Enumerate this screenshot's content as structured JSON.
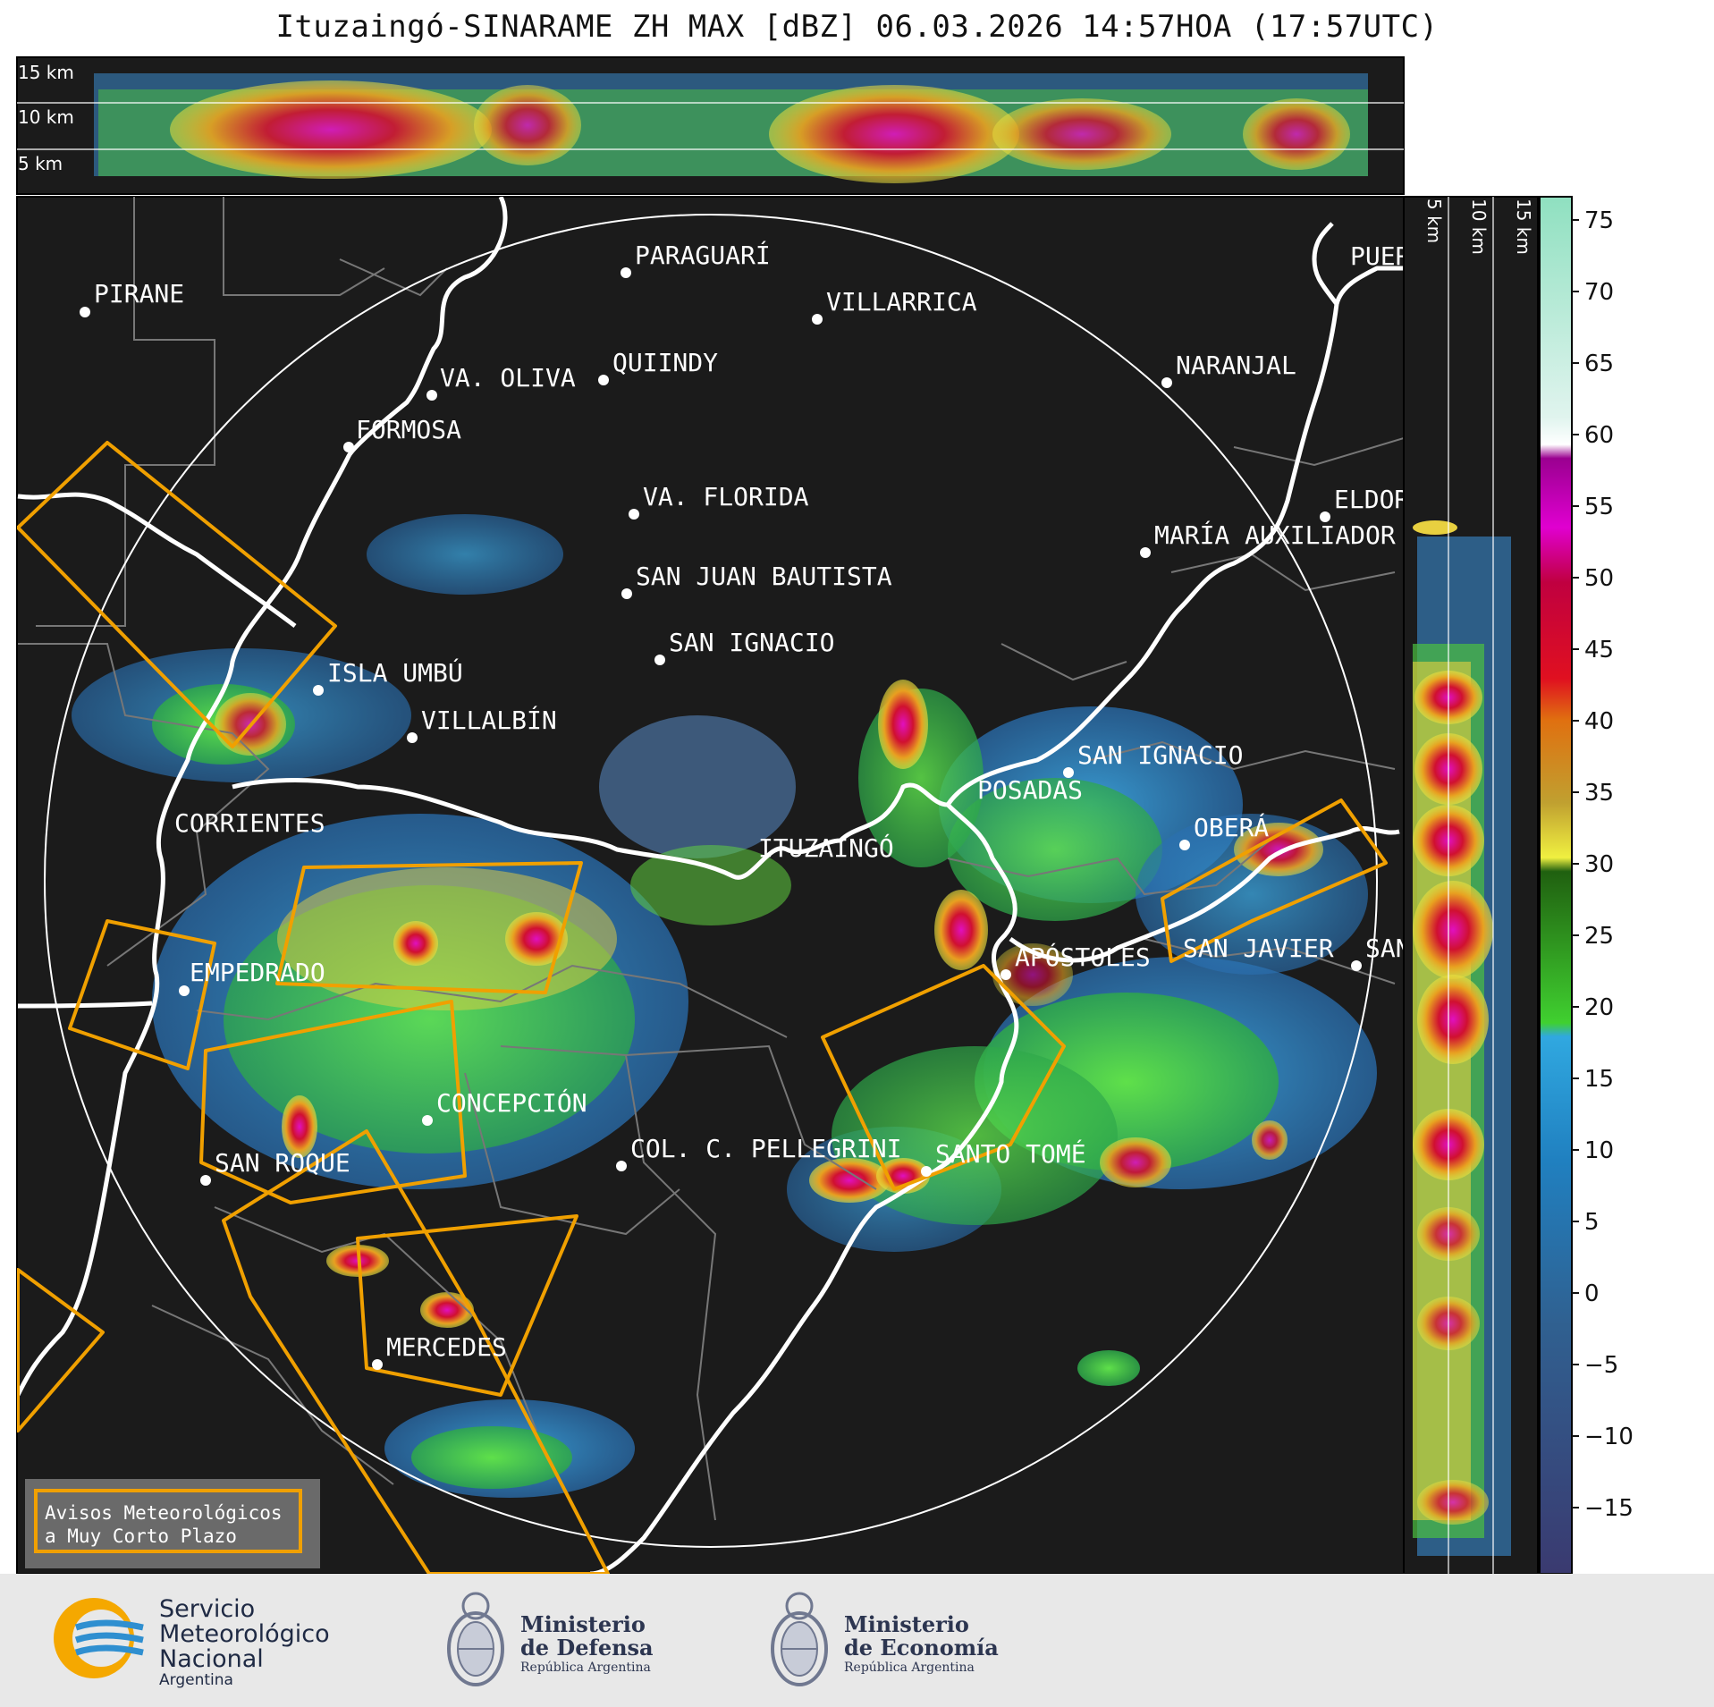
{
  "title": "Ituzaingó-SINARAME ZH MAX [dBZ] 06.03.2026 14:57HOA (17:57UTC)",
  "top_profile_labels": [
    "15 km",
    "10 km",
    "5 km"
  ],
  "side_profile_labels": [
    "5 km",
    "10 km",
    "15 km"
  ],
  "colorbar": {
    "ticks": [
      "75",
      "70",
      "65",
      "60",
      "55",
      "50",
      "45",
      "40",
      "35",
      "30",
      "25",
      "20",
      "15",
      "10",
      "5",
      "0",
      "−5",
      "−10",
      "−15"
    ]
  },
  "cities": [
    {
      "name": "PIRANE"
    },
    {
      "name": "PARAGUARÍ"
    },
    {
      "name": "VILLARRICA"
    },
    {
      "name": "VA. OLIVA"
    },
    {
      "name": "QUIINDY"
    },
    {
      "name": "NARANJAL"
    },
    {
      "name": "FORMOSA"
    },
    {
      "name": "VA. FLORIDA"
    },
    {
      "name": "ELDOR"
    },
    {
      "name": "MARÍA AUXILIADOR"
    },
    {
      "name": "SAN JUAN BAUTISTA"
    },
    {
      "name": "SAN IGNACIO"
    },
    {
      "name": "ISLA UMBÚ"
    },
    {
      "name": "VILLALBÍN"
    },
    {
      "name": "SAN IGNACIO"
    },
    {
      "name": "POSADAS"
    },
    {
      "name": "CORRIENTES"
    },
    {
      "name": "ITUZAINGÓ"
    },
    {
      "name": "OBERÁ"
    },
    {
      "name": "EMPEDRADO"
    },
    {
      "name": "APÓSTOLES"
    },
    {
      "name": "SAN JAVIER"
    },
    {
      "name": "SAN"
    },
    {
      "name": "CONCEPCIÓN"
    },
    {
      "name": "COL. C. PELLEGRINI"
    },
    {
      "name": "SANTO TOMÉ"
    },
    {
      "name": "SAN ROQUE"
    },
    {
      "name": "MERCEDES"
    },
    {
      "name": "PUER"
    }
  ],
  "warning_legend": {
    "line1": "Avisos Meteorológicos",
    "line2": "a Muy Corto Plazo"
  },
  "footer": {
    "smn": {
      "line1": "Servicio",
      "line2": "Meteorológico",
      "line3": "Nacional",
      "line4": "Argentina"
    },
    "defensa": {
      "line1": "Ministerio",
      "line2": "de Defensa",
      "line3": "República Argentina"
    },
    "economia": {
      "line1": "Ministerio",
      "line2": "de Economía",
      "line3": "República Argentina"
    }
  },
  "colors": {
    "map_bg": "#1b1b1b",
    "warning": "#f0a000",
    "river": "#ffffff",
    "border": "#777777"
  }
}
